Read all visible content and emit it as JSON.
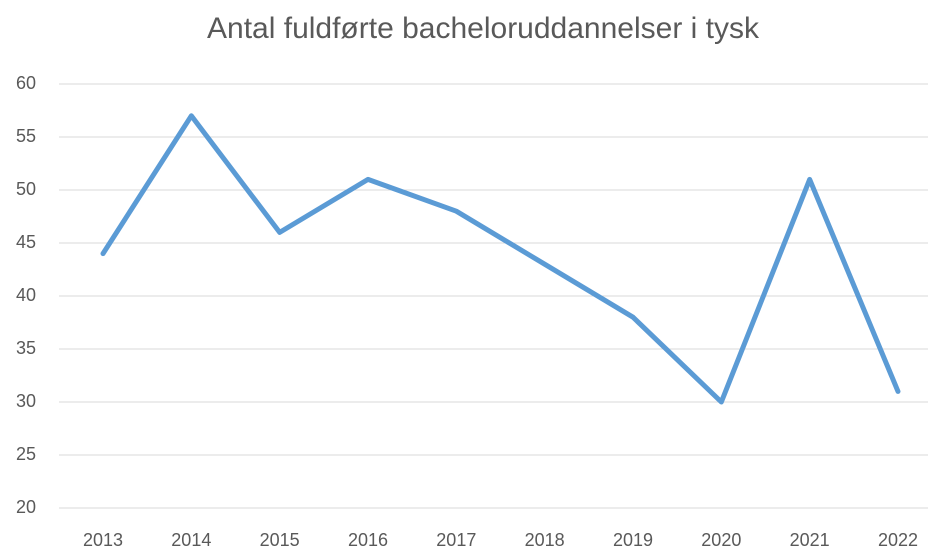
{
  "chart_data": {
    "type": "line",
    "title": "Antal fuldførte bacheloruddannelser i tysk",
    "categories": [
      "2013",
      "2014",
      "2015",
      "2016",
      "2017",
      "2018",
      "2019",
      "2020",
      "2021",
      "2022"
    ],
    "series": [
      {
        "name": "Antal",
        "color": "#5b9bd5",
        "values": [
          44,
          57,
          46,
          51,
          48,
          43,
          38,
          30,
          51,
          31
        ]
      }
    ],
    "ylim": [
      20,
      60
    ],
    "yticks": [
      20,
      25,
      30,
      35,
      40,
      45,
      50,
      55,
      60
    ],
    "grid": true
  }
}
